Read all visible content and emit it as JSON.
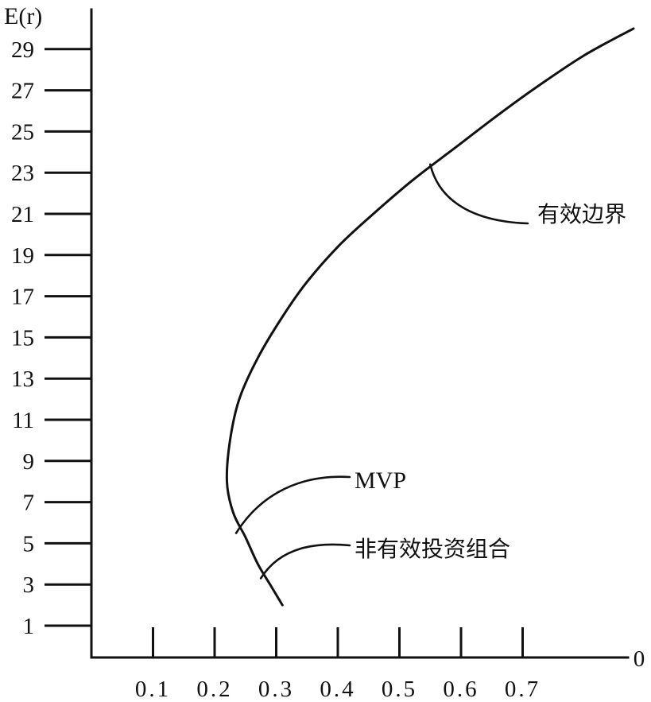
{
  "chart_data": {
    "type": "line",
    "title": "",
    "ylabel": "E(r)",
    "xlabel": "",
    "x_origin_label": "0",
    "y_ticks": [
      "1",
      "3",
      "5",
      "7",
      "9",
      "11",
      "13",
      "15",
      "17",
      "19",
      "21",
      "23",
      "25",
      "27",
      "29"
    ],
    "x_ticks": [
      "0.1",
      "0.2",
      "0.3",
      "0.4",
      "0.5",
      "0.6",
      "0.7"
    ],
    "xlim": [
      0,
      0.88
    ],
    "ylim": [
      0,
      30.5
    ],
    "grid": false,
    "series": [
      {
        "x": [
          0.31,
          0.29,
          0.27,
          0.25,
          0.23,
          0.22,
          0.225,
          0.24,
          0.27,
          0.31,
          0.35,
          0.4,
          0.45,
          0.52,
          0.59,
          0.66,
          0.72,
          0.8,
          0.88
        ],
        "y": [
          2.0,
          3.0,
          4.0,
          5.3,
          6.5,
          8.0,
          10.0,
          12.0,
          14.0,
          16.0,
          17.7,
          19.4,
          20.8,
          22.6,
          24.2,
          25.8,
          27.1,
          28.7,
          30.0
        ]
      }
    ],
    "annotations": [
      {
        "text": "有效边界",
        "x": 0.55,
        "y": 23.4
      },
      {
        "text": "MVP",
        "x": 0.235,
        "y": 5.5
      },
      {
        "text": "非有效投资组合",
        "x": 0.275,
        "y": 3.3
      }
    ]
  }
}
